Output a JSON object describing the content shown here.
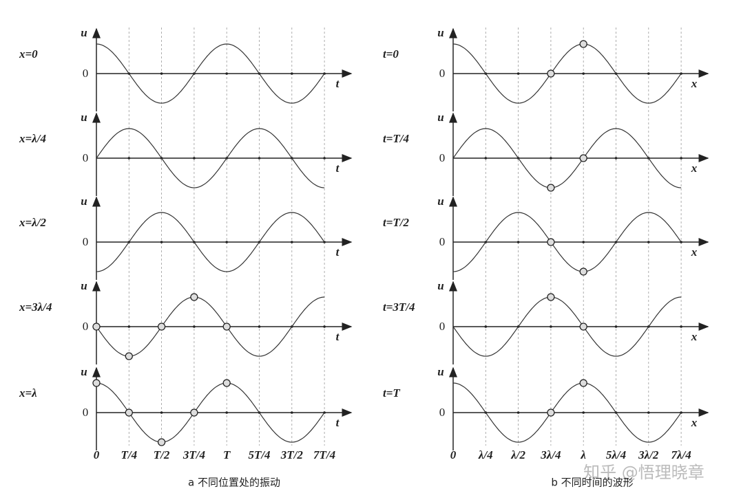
{
  "panels": [
    {
      "row_labels": [
        "x=0",
        "x=λ/4",
        "x=λ/2",
        "x=3λ/4",
        "x=λ"
      ],
      "axis_u": "u",
      "axis_zero": "0",
      "axis_var": "t",
      "tick_labels": [
        "0",
        "T/4",
        "T/2",
        "3T/4",
        "T",
        "5T/4",
        "3T/2",
        "7T/4"
      ],
      "caption": "a  不同位置处的振动"
    },
    {
      "row_labels": [
        "t=0",
        "t=T/4",
        "t=T/2",
        "t=3T/4",
        "t=T"
      ],
      "axis_u": "u",
      "axis_zero": "0",
      "axis_var": "x",
      "tick_labels": [
        "0",
        "λ/4",
        "λ/2",
        "3λ/4",
        "λ",
        "5λ/4",
        "3λ/2",
        "7λ/4"
      ],
      "caption": "b  不同时间的波形"
    }
  ],
  "watermark": "知乎 @悟理晓章"
}
